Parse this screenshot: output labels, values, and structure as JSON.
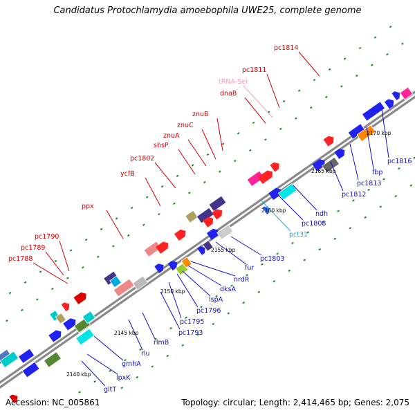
{
  "title": "Candidatus Protochlamydia amoebophila UWE25, complete genome",
  "footer": {
    "accession": "Accession: NC_005861",
    "info": "Topology: circular; Length: 2,414,465 bp; Genes: 2,075"
  },
  "colors": {
    "backbone": "#8a8a8a",
    "upper_label": "#d40000",
    "lower_label": "#1010c8",
    "trna_label": "#ff99bb",
    "pct_label": "#22aadd",
    "tick": "#1a8a1a"
  },
  "kbp_marks": [
    {
      "label": "2140 kbp"
    },
    {
      "label": "2145 kbp"
    },
    {
      "label": "2150 kbp"
    },
    {
      "label": "2155 kbp"
    },
    {
      "label": "2160 kbp"
    },
    {
      "label": "2165 kbp"
    },
    {
      "label": "2170 kbp"
    }
  ],
  "upper_labels": [
    {
      "name": "pc1788"
    },
    {
      "name": "pc1789"
    },
    {
      "name": "pc1790"
    },
    {
      "name": "ppx"
    },
    {
      "name": "ycfB"
    },
    {
      "name": "pc1802"
    },
    {
      "name": "shsP"
    },
    {
      "name": "znuA"
    },
    {
      "name": "znuC"
    },
    {
      "name": "znuB"
    },
    {
      "name": "dnaB"
    },
    {
      "name": "tRNA-Ser"
    },
    {
      "name": "pc1811"
    },
    {
      "name": "pc1814"
    }
  ],
  "lower_labels": [
    {
      "name": "gltT"
    },
    {
      "name": "lpxK"
    },
    {
      "name": "gmhA"
    },
    {
      "name": "rlu"
    },
    {
      "name": "rlmB"
    },
    {
      "name": "pc1793"
    },
    {
      "name": "pc1795"
    },
    {
      "name": "pc1796"
    },
    {
      "name": "lspA"
    },
    {
      "name": "dksA"
    },
    {
      "name": "nrdR"
    },
    {
      "name": "fur"
    },
    {
      "name": "pc1803"
    },
    {
      "name": "pct31"
    },
    {
      "name": "pc1808"
    },
    {
      "name": "ndh"
    },
    {
      "name": "pc1812"
    },
    {
      "name": "pc1813"
    },
    {
      "name": "fbp"
    },
    {
      "name": "pc1816"
    }
  ]
}
